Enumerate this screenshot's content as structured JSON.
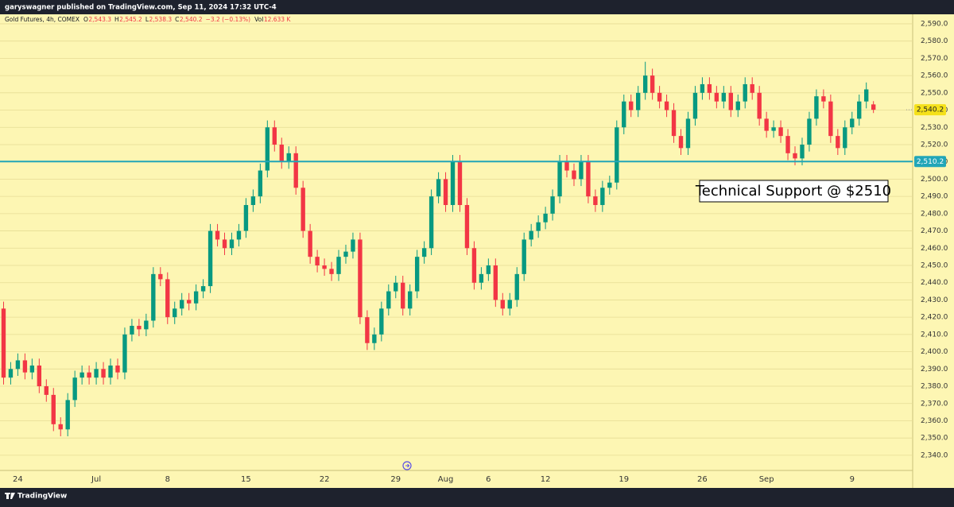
{
  "header": {
    "text": "garyswagner published on TradingView.com, Sep 11, 2024 17:32 UTC-4"
  },
  "footer": {
    "brand": "TradingView"
  },
  "chart_data": {
    "type": "candlestick",
    "legend": {
      "symbol": "Gold Futures, 4h, COMEX",
      "items": [
        {
          "key": "O",
          "text": "2,543.3"
        },
        {
          "key": "H",
          "text": "2,545.2"
        },
        {
          "key": "L",
          "text": "2,538.3"
        },
        {
          "key": "C",
          "text": "2,540.2"
        }
      ],
      "change": "−3.2 (−0.13%)",
      "volume_key": "Vol",
      "volume": "12.633 K"
    },
    "up_color": "#089981",
    "down_color": "#f23645",
    "grid": true,
    "xlim": [
      -0.5,
      127.5
    ],
    "xticks": [
      {
        "value": 2,
        "label": "24"
      },
      {
        "value": 13,
        "label": "Jul"
      },
      {
        "value": 23,
        "label": "8"
      },
      {
        "value": 34,
        "label": "15"
      },
      {
        "value": 45,
        "label": "22"
      },
      {
        "value": 55,
        "label": "29"
      },
      {
        "value": 62,
        "label": "Aug"
      },
      {
        "value": 68,
        "label": "6"
      },
      {
        "value": 76,
        "label": "12"
      },
      {
        "value": 87,
        "label": "19"
      },
      {
        "value": 98,
        "label": "26"
      },
      {
        "value": 107,
        "label": "Sep"
      },
      {
        "value": 119,
        "label": "9"
      }
    ],
    "ylim": [
      2322,
      2595.5
    ],
    "yticks": [
      {
        "value": 2340,
        "label": "2,340.0"
      },
      {
        "value": 2350,
        "label": "2,350.0"
      },
      {
        "value": 2360,
        "label": "2,360.0"
      },
      {
        "value": 2370,
        "label": "2,370.0"
      },
      {
        "value": 2380,
        "label": "2,380.0"
      },
      {
        "value": 2390,
        "label": "2,390.0"
      },
      {
        "value": 2400,
        "label": "2,400.0"
      },
      {
        "value": 2410,
        "label": "2,410.0"
      },
      {
        "value": 2420,
        "label": "2,420.0"
      },
      {
        "value": 2430,
        "label": "2,430.0"
      },
      {
        "value": 2440,
        "label": "2,440.0"
      },
      {
        "value": 2450,
        "label": "2,450.0"
      },
      {
        "value": 2460,
        "label": "2,460.0"
      },
      {
        "value": 2470,
        "label": "2,470.0"
      },
      {
        "value": 2480,
        "label": "2,480.0"
      },
      {
        "value": 2490,
        "label": "2,490.0"
      },
      {
        "value": 2500,
        "label": "2,500.0"
      },
      {
        "value": 2510,
        "label": "2,510.0"
      },
      {
        "value": 2520,
        "label": "2,520.0"
      },
      {
        "value": 2530,
        "label": "2,530.0"
      },
      {
        "value": 2540,
        "label": "2,540.0"
      },
      {
        "value": 2550,
        "label": "2,550.0"
      },
      {
        "value": 2560,
        "label": "2,560.0"
      },
      {
        "value": 2570,
        "label": "2,570.0"
      },
      {
        "value": 2580,
        "label": "2,580.0"
      },
      {
        "value": 2590,
        "label": "2,590.0"
      }
    ],
    "open": [
      2425,
      2385,
      2390,
      2395,
      2388,
      2392,
      2380,
      2375,
      2358,
      2355,
      2372,
      2385,
      2388,
      2385,
      2390,
      2385,
      2392,
      2388,
      2410,
      2415,
      2413,
      2418,
      2445,
      2442,
      2420,
      2425,
      2430,
      2428,
      2435,
      2438,
      2470,
      2465,
      2460,
      2465,
      2470,
      2485,
      2490,
      2505,
      2530,
      2520,
      2510,
      2515,
      2495,
      2470,
      2455,
      2450,
      2448,
      2445,
      2455,
      2458,
      2465,
      2420,
      2405,
      2410,
      2425,
      2435,
      2440,
      2425,
      2435,
      2455,
      2460,
      2490,
      2500,
      2485,
      2510,
      2485,
      2460,
      2440,
      2445,
      2450,
      2430,
      2425,
      2430,
      2445,
      2465,
      2470,
      2475,
      2480,
      2490,
      2510,
      2505,
      2500,
      2510,
      2490,
      2485,
      2495,
      2498,
      2530,
      2545,
      2540,
      2550,
      2560,
      2550,
      2545,
      2540,
      2525,
      2518,
      2535,
      2550,
      2555,
      2550,
      2545,
      2550,
      2540,
      2545,
      2555,
      2550,
      2535,
      2528,
      2530,
      2525,
      2515,
      2512,
      2520,
      2535,
      2548,
      2545,
      2525,
      2518,
      2530,
      2535,
      2545,
      2543.3
    ],
    "high": [
      2429,
      2394,
      2399,
      2399,
      2396,
      2396,
      2384,
      2379,
      2362,
      2376,
      2389,
      2392,
      2392,
      2394,
      2394,
      2396,
      2396,
      2414,
      2419,
      2419,
      2422,
      2449,
      2449,
      2446,
      2429,
      2434,
      2434,
      2439,
      2442,
      2474,
      2474,
      2469,
      2469,
      2474,
      2489,
      2494,
      2509,
      2534,
      2534,
      2524,
      2519,
      2519,
      2499,
      2474,
      2459,
      2454,
      2452,
      2459,
      2462,
      2469,
      2469,
      2424,
      2414,
      2429,
      2439,
      2444,
      2444,
      2439,
      2459,
      2464,
      2494,
      2504,
      2504,
      2514,
      2514,
      2489,
      2464,
      2449,
      2454,
      2454,
      2434,
      2434,
      2449,
      2469,
      2474,
      2479,
      2484,
      2494,
      2514,
      2514,
      2509,
      2514,
      2514,
      2494,
      2499,
      2502,
      2534,
      2549,
      2549,
      2554,
      2568,
      2564,
      2554,
      2549,
      2544,
      2529,
      2539,
      2554,
      2559,
      2559,
      2554,
      2554,
      2554,
      2549,
      2559,
      2559,
      2554,
      2539,
      2534,
      2534,
      2529,
      2519,
      2524,
      2539,
      2552,
      2552,
      2549,
      2529,
      2534,
      2539,
      2549,
      2556,
      2545.2
    ],
    "low": [
      2381,
      2381,
      2386,
      2384,
      2384,
      2376,
      2371,
      2354,
      2351,
      2351,
      2368,
      2381,
      2381,
      2381,
      2381,
      2381,
      2384,
      2384,
      2406,
      2409,
      2409,
      2414,
      2438,
      2416,
      2416,
      2421,
      2424,
      2424,
      2431,
      2434,
      2461,
      2456,
      2456,
      2461,
      2466,
      2481,
      2486,
      2501,
      2516,
      2506,
      2506,
      2491,
      2466,
      2451,
      2446,
      2444,
      2441,
      2441,
      2451,
      2454,
      2416,
      2401,
      2401,
      2406,
      2421,
      2431,
      2421,
      2421,
      2431,
      2451,
      2456,
      2486,
      2481,
      2481,
      2481,
      2456,
      2436,
      2436,
      2441,
      2426,
      2421,
      2421,
      2426,
      2441,
      2461,
      2466,
      2471,
      2476,
      2486,
      2501,
      2496,
      2496,
      2486,
      2481,
      2481,
      2491,
      2494,
      2526,
      2536,
      2536,
      2546,
      2546,
      2541,
      2536,
      2521,
      2514,
      2514,
      2531,
      2546,
      2546,
      2541,
      2541,
      2536,
      2536,
      2541,
      2546,
      2531,
      2524,
      2524,
      2521,
      2511,
      2508,
      2508,
      2516,
      2531,
      2541,
      2521,
      2514,
      2514,
      2526,
      2531,
      2541,
      2538.3
    ],
    "close": [
      2385,
      2390,
      2395,
      2388,
      2392,
      2380,
      2375,
      2358,
      2355,
      2372,
      2385,
      2388,
      2385,
      2390,
      2385,
      2392,
      2388,
      2410,
      2415,
      2413,
      2418,
      2445,
      2442,
      2420,
      2425,
      2430,
      2428,
      2435,
      2438,
      2470,
      2465,
      2460,
      2465,
      2470,
      2485,
      2490,
      2505,
      2530,
      2520,
      2510,
      2515,
      2495,
      2470,
      2455,
      2450,
      2448,
      2445,
      2455,
      2458,
      2465,
      2420,
      2405,
      2410,
      2425,
      2435,
      2440,
      2425,
      2435,
      2455,
      2460,
      2490,
      2500,
      2485,
      2510,
      2485,
      2460,
      2440,
      2445,
      2450,
      2430,
      2425,
      2430,
      2445,
      2465,
      2470,
      2475,
      2480,
      2490,
      2510,
      2505,
      2500,
      2510,
      2490,
      2485,
      2495,
      2498,
      2530,
      2545,
      2540,
      2550,
      2560,
      2550,
      2545,
      2540,
      2525,
      2518,
      2535,
      2550,
      2555,
      2550,
      2545,
      2550,
      2540,
      2545,
      2555,
      2550,
      2535,
      2528,
      2530,
      2525,
      2515,
      2512,
      2520,
      2535,
      2548,
      2545,
      2525,
      2518,
      2530,
      2535,
      2545,
      2552,
      2540.2
    ],
    "last_price": {
      "value": 2540.2,
      "label": "2,540.2",
      "color": "#f5e11a"
    },
    "support_line": {
      "value": 2510.2,
      "label": "2,510.2",
      "color": "#22a6b8"
    },
    "annotation": "Technical Support @ $2510"
  }
}
